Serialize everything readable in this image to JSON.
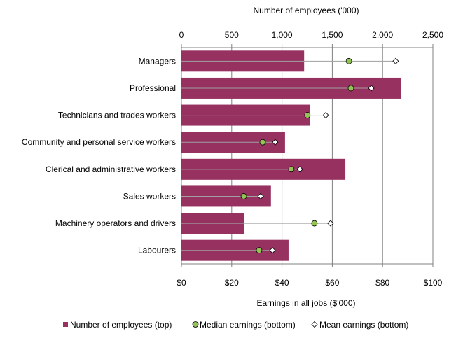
{
  "chart_data": {
    "type": "bar",
    "orientation": "horizontal",
    "categories": [
      "Managers",
      "Professional",
      "Technicians and trades workers",
      "Community and personal service workers",
      "Clerical and administrative workers",
      "Sales workers",
      "Machinery operators and drivers",
      "Labourers"
    ],
    "series": [
      {
        "name": "Number of employees (top)",
        "axis": "top",
        "type": "bar",
        "color": "#963160",
        "values": [
          1220,
          2185,
          1275,
          1030,
          1630,
          890,
          620,
          1065
        ]
      },
      {
        "name": "Median earnings (bottom)",
        "axis": "bottom",
        "type": "scatter",
        "marker": "circle",
        "color": "#92c353",
        "values": [
          66.6,
          67.4,
          50.1,
          32.3,
          43.7,
          24.8,
          52.9,
          30.9
        ]
      },
      {
        "name": "Mean earnings (bottom)",
        "axis": "bottom",
        "type": "scatter",
        "marker": "diamond",
        "color": "#ffffff",
        "values": [
          85.2,
          75.5,
          57.4,
          37.3,
          47.1,
          31.5,
          59.3,
          36.2
        ]
      }
    ],
    "top_axis": {
      "label": "Number of employees ('000)",
      "range": [
        0,
        2500
      ],
      "ticks": [
        "0",
        "500",
        "1,000",
        "1,500",
        "2,000",
        "2,500"
      ]
    },
    "bottom_axis": {
      "label": "Earnings in all jobs ($'000)",
      "range": [
        0,
        100
      ],
      "ticks": [
        "$0",
        "$20",
        "$40",
        "$60",
        "$80",
        "$100"
      ]
    },
    "grid": true,
    "legend": "bottom"
  }
}
